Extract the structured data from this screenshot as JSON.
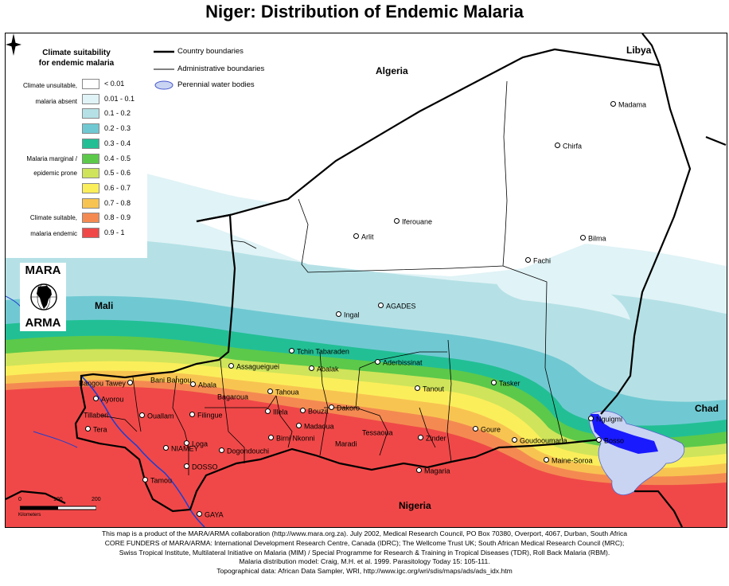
{
  "title": "Niger: Distribution of Endemic Malaria",
  "legend": {
    "title_line1": "Climate suitability",
    "title_line2": "for endemic malaria",
    "groups": [
      {
        "line1": "Climate unsuitable,",
        "line2": "malaria absent"
      },
      {
        "line1": "Malaria marginal /",
        "line2": "epidemic prone"
      },
      {
        "line1": "Climate suitable,",
        "line2": "malaria endemic"
      }
    ],
    "classes": [
      {
        "label": "< 0.01",
        "color": "#ffffff"
      },
      {
        "label": "0.01 - 0.1",
        "color": "#e0f3f6"
      },
      {
        "label": "0.1 - 0.2",
        "color": "#b5e1e6"
      },
      {
        "label": "0.2 - 0.3",
        "color": "#70c9d2"
      },
      {
        "label": "0.3 - 0.4",
        "color": "#22bf95"
      },
      {
        "label": "0.4 - 0.5",
        "color": "#5cc94a"
      },
      {
        "label": "0.5 - 0.6",
        "color": "#cfe45a"
      },
      {
        "label": "0.6 - 0.7",
        "color": "#fbee5b"
      },
      {
        "label": "0.7 - 0.8",
        "color": "#f8c451"
      },
      {
        "label": "0.8 - 0.9",
        "color": "#f48a52"
      },
      {
        "label": "0.9 - 1",
        "color": "#f04848"
      }
    ]
  },
  "key": {
    "country_boundaries": "Country boundaries",
    "admin_boundaries": "Administrative boundaries",
    "water_bodies": "Perennial water bodies",
    "water_color": "#c9d4f2"
  },
  "logo": {
    "top": "MARA",
    "bottom": "ARMA"
  },
  "countries": {
    "algeria": "Algeria",
    "libya": "Libya",
    "mali": "Mali",
    "chad": "Chad",
    "nigeria": "Nigeria"
  },
  "cities": [
    {
      "id": "madama",
      "name": "Madama"
    },
    {
      "id": "chirfa",
      "name": "Chirfa"
    },
    {
      "id": "iferouane",
      "name": "Iferouane"
    },
    {
      "id": "arlit",
      "name": "Arlit"
    },
    {
      "id": "bilma",
      "name": "Bilma"
    },
    {
      "id": "fachi",
      "name": "Fachi"
    },
    {
      "id": "agades",
      "name": "AGADES"
    },
    {
      "id": "ingal",
      "name": "Ingal"
    },
    {
      "id": "tchin-tabaraden",
      "name": "Tchin Tabaraden"
    },
    {
      "id": "assagueiguei",
      "name": "Assagueiguei"
    },
    {
      "id": "abalak",
      "name": "Abalak"
    },
    {
      "id": "aderbissinat",
      "name": "Aderbissinat"
    },
    {
      "id": "tanout",
      "name": "Tanout"
    },
    {
      "id": "tasker",
      "name": "Tasker"
    },
    {
      "id": "nguigmi",
      "name": "Nguigmi"
    },
    {
      "id": "bosso",
      "name": "Bosso"
    },
    {
      "id": "bangou-tawey",
      "name": "Bangou Tawey"
    },
    {
      "id": "bani-bangou",
      "name": "Bani Bangou"
    },
    {
      "id": "abala",
      "name": "Abala"
    },
    {
      "id": "ayorou",
      "name": "Ayorou"
    },
    {
      "id": "bagaroua",
      "name": "Bagaroua"
    },
    {
      "id": "tahoua",
      "name": "Tahoua"
    },
    {
      "id": "tillaberi",
      "name": "Tillaberi"
    },
    {
      "id": "ouallam",
      "name": "Ouallam"
    },
    {
      "id": "filingue",
      "name": "Filingue"
    },
    {
      "id": "illela",
      "name": "Illela"
    },
    {
      "id": "bouza",
      "name": "Bouza"
    },
    {
      "id": "dakoro",
      "name": "Dakoro"
    },
    {
      "id": "tera",
      "name": "Tera"
    },
    {
      "id": "madaoua",
      "name": "Madaoua"
    },
    {
      "id": "tessaoua",
      "name": "Tessaoua"
    },
    {
      "id": "goure",
      "name": "Goure"
    },
    {
      "id": "birni-nkonni",
      "name": "Birni Nkonni"
    },
    {
      "id": "zinder",
      "name": "Zinder"
    },
    {
      "id": "goudooumaria",
      "name": "Goudooumaria"
    },
    {
      "id": "loga",
      "name": "Loga"
    },
    {
      "id": "maradi",
      "name": "Maradi"
    },
    {
      "id": "niamey",
      "name": "NIAMEY"
    },
    {
      "id": "dogondouchi",
      "name": "Dogondouchi"
    },
    {
      "id": "maine-soroa",
      "name": "Maine-Soroa"
    },
    {
      "id": "dosso",
      "name": "DOSSO"
    },
    {
      "id": "magaria",
      "name": "Magaria"
    },
    {
      "id": "tamou",
      "name": "Tamou"
    },
    {
      "id": "gaya",
      "name": "GAYA"
    }
  ],
  "scale": {
    "ticks": [
      "0",
      "100",
      "200"
    ],
    "units": "Kilometers"
  },
  "credits": [
    "This map is a product of the MARA/ARMA collaboration (http://www.mara.org.za).  July 2002, Medical Research Council, PO Box 70380, Overport, 4067, Durban, South Africa",
    "CORE FUNDERS of MARA/ARMA: International Development Research Centre, Canada (IDRC); The Wellcome Trust UK; South African Medical Research Council (MRC);",
    "Swiss Tropical Institute, Multilateral Initiative on Malaria (MIM) / Special Programme for Research & Training in Tropical Diseases (TDR), Roll Back Malaria (RBM).",
    "Malaria distribution model: Craig, M.H. et al. 1999.  Parasitology Today 15: 105-111.",
    "Topographical data: African Data Sampler, WRI, http://www.igc.org/wri/sdis/maps/ads/ads_idx.htm"
  ]
}
